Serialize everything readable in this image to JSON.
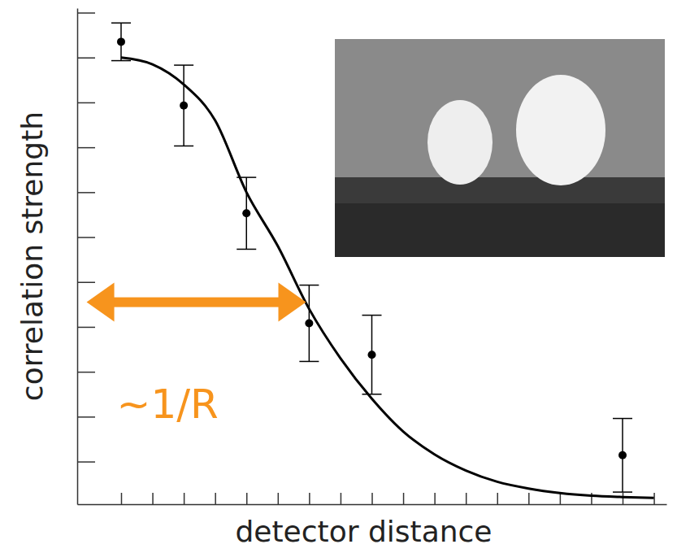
{
  "chart_data": {
    "type": "scatter",
    "x_label": "detector distance",
    "y_label": "correlation strength",
    "xlim": [
      -0.7,
      8.7
    ],
    "ylim": [
      -0.95,
      10.1
    ],
    "xticks": [
      0,
      0.5,
      1,
      1.5,
      2,
      2.5,
      3,
      3.5,
      4,
      4.5,
      5,
      5.5,
      6,
      6.5,
      7,
      7.5,
      8,
      8.5
    ],
    "yticks": [
      0,
      1,
      2,
      3,
      4,
      5,
      6,
      7,
      8,
      9,
      10
    ],
    "tick_labels": false,
    "grid": false,
    "series": [
      {
        "type": "scatter",
        "marker": "circle",
        "color": "#000000",
        "x": [
          0,
          1,
          2,
          3,
          4,
          8
        ],
        "values": [
          9.35,
          7.93,
          5.53,
          3.08,
          2.38,
          0.14
        ],
        "errors": [
          0.42,
          0.9,
          0.8,
          0.85,
          0.88,
          0.82
        ]
      },
      {
        "type": "line",
        "line_style": "solid",
        "color": "#000000",
        "x": [
          0,
          0.5,
          1,
          1.5,
          2,
          2.5,
          3,
          3.5,
          4,
          4.5,
          5,
          5.5,
          6,
          6.5,
          7,
          7.5,
          8,
          8.5
        ],
        "values": [
          9.0,
          8.85,
          8.4,
          7.6,
          6.0,
          4.8,
          3.4,
          2.3,
          1.4,
          0.67,
          0.16,
          -0.2,
          -0.45,
          -0.6,
          -0.7,
          -0.76,
          -0.79,
          -0.81
        ]
      }
    ],
    "annotations": [
      {
        "text": "~1/R",
        "x": [
          -0.55,
          2.95
        ],
        "y": 3.55,
        "color": "#f7941d"
      }
    ]
  }
}
